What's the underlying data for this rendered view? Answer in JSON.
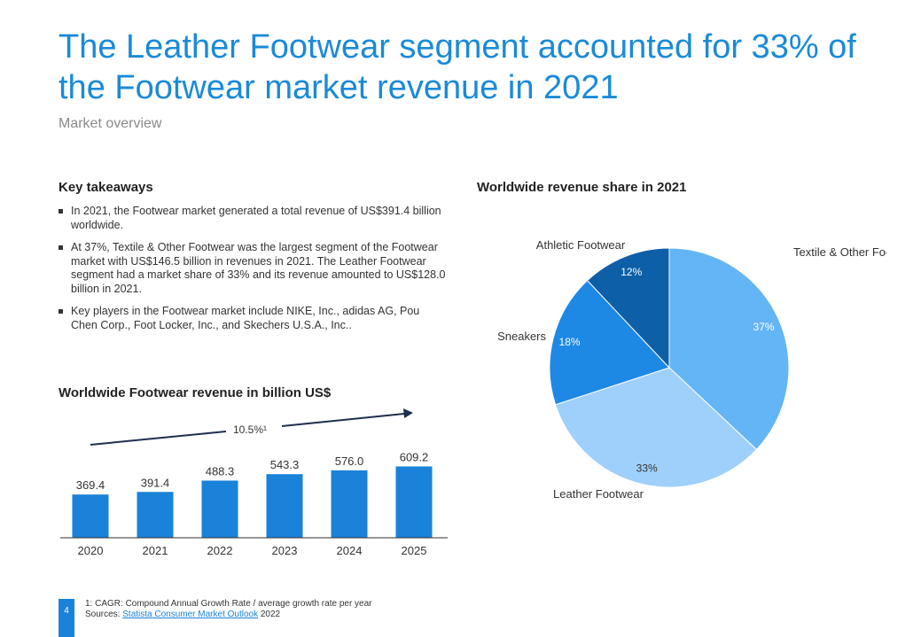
{
  "page": {
    "title": "The Leather Footwear segment accounted for 33% of the Footwear market revenue in 2021",
    "subtitle": "Market overview",
    "page_number": "4"
  },
  "takeaways": {
    "heading": "Key takeaways",
    "items": [
      "In 2021, the Footwear market generated a total revenue of US$391.4 billion worldwide.",
      "At 37%, Textile & Other Footwear was the largest segment of the Footwear market with US$146.5 billion in revenues in 2021. The Leather Footwear segment had a market share of 33% and its revenue amounted to US$128.0 billion in 2021.",
      "Key players in the Footwear market include NIKE, Inc., adidas AG, Pou Chen Corp., Foot Locker, Inc., and Skechers U.S.A., Inc.."
    ]
  },
  "footer": {
    "note": "1: CAGR: Compound Annual Growth Rate / average growth rate per year",
    "sources_prefix": "Sources: ",
    "sources_link": "Statista Consumer Market Outlook",
    "sources_suffix": " 2022"
  },
  "colors": {
    "title_blue": "#1a8ad8",
    "bar_blue": "#1a82d8",
    "arrow": "#1f2f4f",
    "textile": "#64b5f6",
    "leather": "#9ed0fb",
    "sneakers": "#1e88e5",
    "athletic": "#0d5fa8"
  },
  "chart_data": [
    {
      "type": "bar",
      "title": "Worldwide Footwear revenue in billion US$",
      "categories": [
        "2020",
        "2021",
        "2022",
        "2023",
        "2024",
        "2025"
      ],
      "values": [
        369.4,
        391.4,
        488.3,
        543.3,
        576.0,
        609.2
      ],
      "value_labels": [
        "369.4",
        "391.4",
        "488.3",
        "543.3",
        "576.0",
        "609.2"
      ],
      "annotation": "10.5%¹",
      "ylim": [
        0,
        1150
      ],
      "grid": false
    },
    {
      "type": "pie",
      "title": "Worldwide revenue share in 2021",
      "slices": [
        {
          "name": "Textile & Other Footwear",
          "value": 37,
          "label": "37%",
          "color": "#64b5f6"
        },
        {
          "name": "Leather Footwear",
          "value": 33,
          "label": "33%",
          "color": "#9ed0fb"
        },
        {
          "name": "Sneakers",
          "value": 18,
          "label": "18%",
          "color": "#1e88e5"
        },
        {
          "name": "Athletic Footwear",
          "value": 12,
          "label": "12%",
          "color": "#0d5fa8"
        }
      ]
    }
  ]
}
